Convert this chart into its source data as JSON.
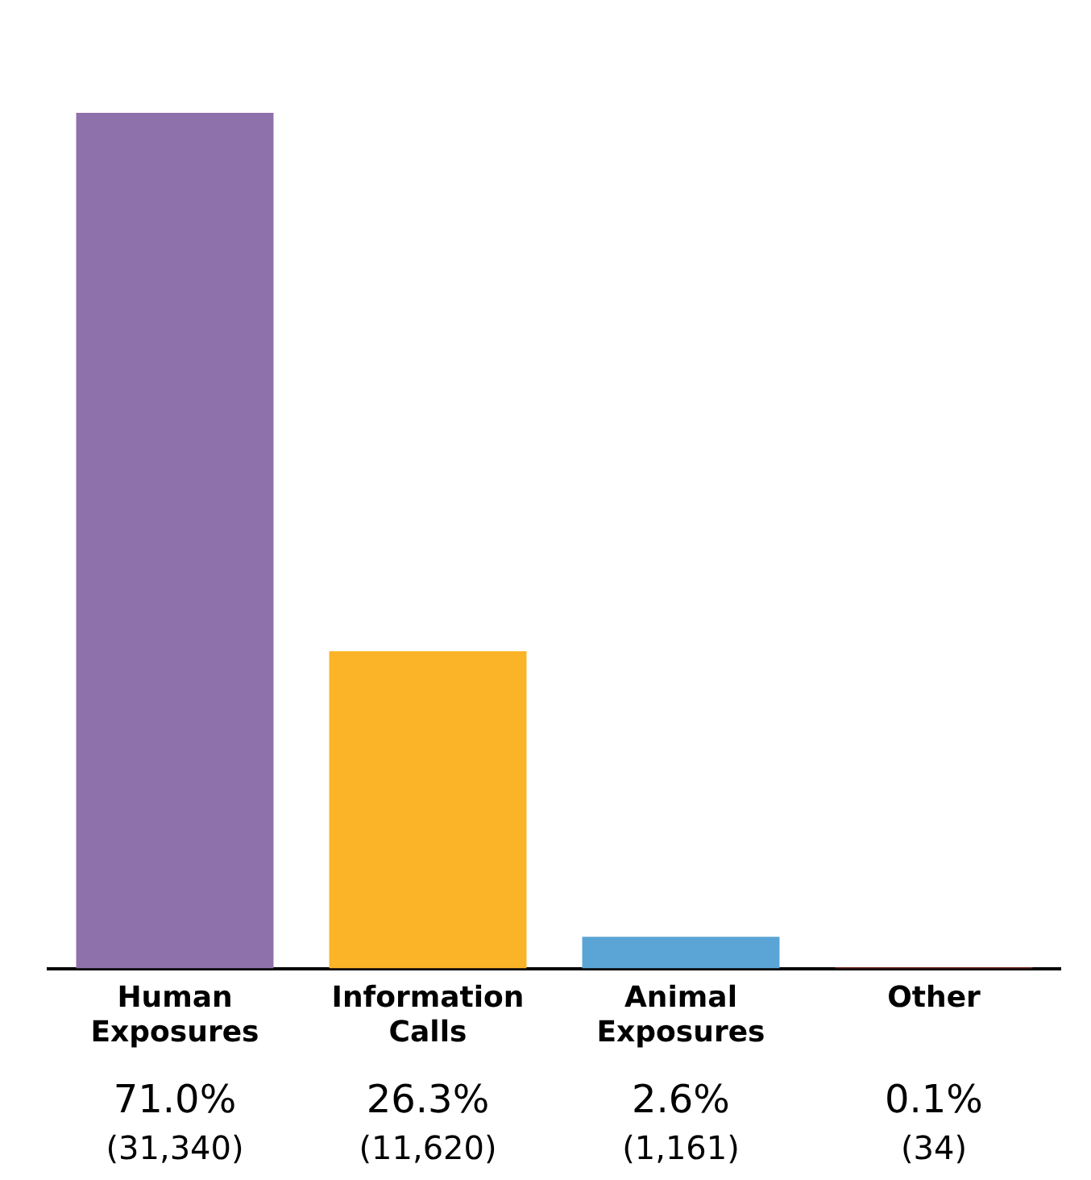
{
  "chart_data": {
    "type": "bar",
    "categories": [
      "Human Exposures",
      "Information Calls",
      "Animal Exposures",
      "Other"
    ],
    "values": [
      31340,
      11620,
      1161,
      34
    ],
    "colors": [
      "#8e70aa",
      "#fbb427",
      "#5ba5d6",
      "#e0473a"
    ],
    "value_labels": [
      "71.0%\n(31,340)",
      "26.3%\n(11,620)",
      "2.6%\n(1,161)",
      "0.1%\n(34)"
    ],
    "grid": false,
    "legend": false
  }
}
